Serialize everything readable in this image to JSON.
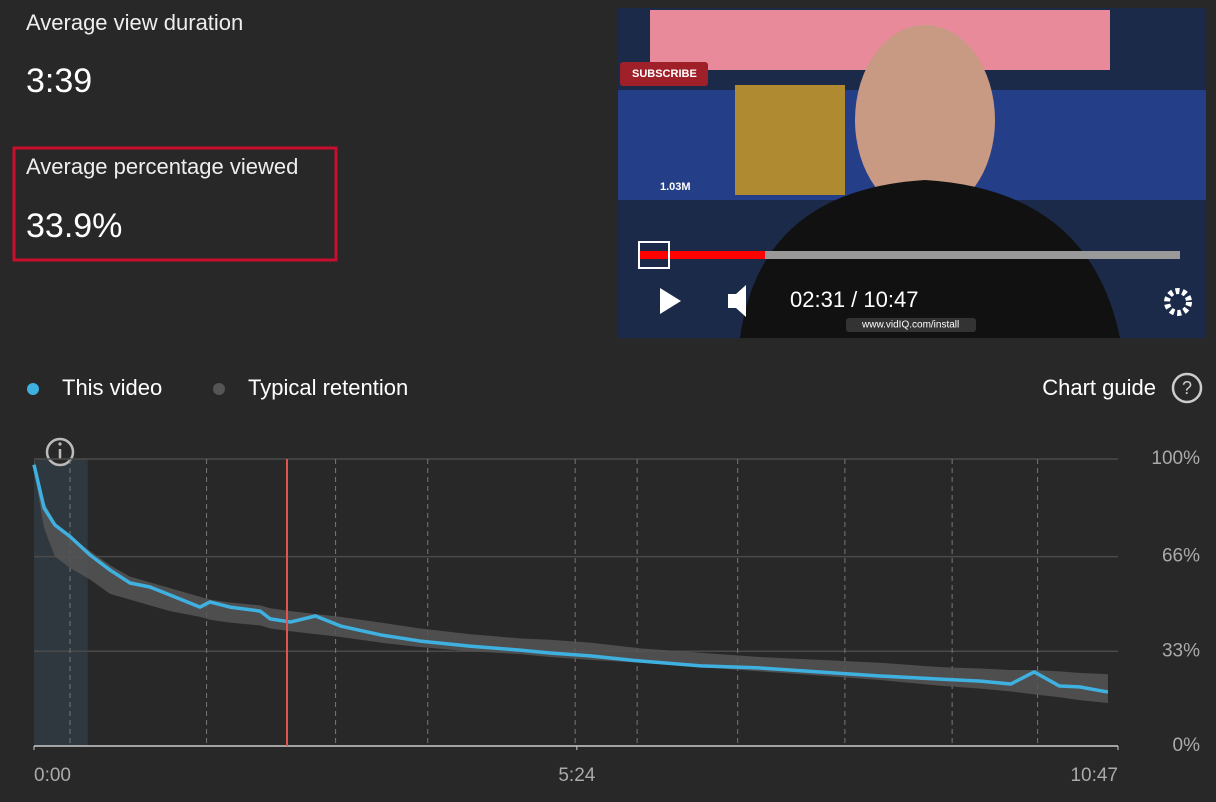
{
  "metrics": [
    {
      "label": "Average view duration",
      "value": "3:39"
    },
    {
      "label": "Average percentage viewed",
      "value": "33.9%"
    }
  ],
  "video": {
    "time": "02:31 / 10:47",
    "overlay_texts": [
      "SUBSCRIBE",
      "1.03M",
      "www.vidIQ.com/install"
    ]
  },
  "chart_guide": "Chart guide",
  "chart_data": {
    "type": "line",
    "x": [
      0,
      6,
      12.5,
      21.5,
      33.4,
      45.4,
      57.3,
      69.2,
      81.2,
      99.1,
      105,
      117,
      135,
      141,
      153,
      168,
      183,
      207,
      230,
      260,
      290,
      308,
      332,
      362,
      398,
      433,
      469,
      505,
      541,
      565,
      583,
      597,
      612,
      624,
      641
    ],
    "series": [
      {
        "name": "This video",
        "color": "#3fb1e0",
        "values": [
          98,
          83,
          77,
          73,
          66.6,
          61.3,
          56.8,
          55.4,
          52.6,
          48.4,
          50.2,
          48.4,
          47,
          44.3,
          43.2,
          45.3,
          41.8,
          38.7,
          36.6,
          34.8,
          33.4,
          32.4,
          31.4,
          29.6,
          27.9,
          27.2,
          25.8,
          24.4,
          23.3,
          22.6,
          21.6,
          25.8,
          20.9,
          20.6,
          18.8
        ]
      },
      {
        "name": "Typical retention",
        "color": "#555555",
        "high": [
          100,
          85,
          78,
          73,
          68,
          63,
          59,
          57,
          55,
          52,
          51,
          50,
          49,
          48,
          47,
          46,
          45,
          43,
          41,
          39,
          37.5,
          37,
          36,
          34,
          32.5,
          31,
          30,
          29,
          27.5,
          27,
          26.5,
          26.5,
          26,
          25.5,
          25
        ],
        "low": [
          96,
          76,
          66,
          62,
          58,
          53,
          51,
          49,
          47,
          45,
          44,
          43,
          42,
          41,
          40,
          39,
          38,
          36,
          34.5,
          33,
          32,
          31,
          30,
          29,
          27.5,
          26,
          24.5,
          23,
          21,
          20,
          19,
          18,
          17,
          16,
          15
        ]
      }
    ],
    "xlim": [
      0,
      647
    ],
    "xticks": [
      {
        "value": 0,
        "label": "0:00"
      },
      {
        "value": 324,
        "label": "5:24"
      },
      {
        "value": 647,
        "label": "10:47"
      }
    ],
    "ylim": [
      0,
      100
    ],
    "yticks": [
      {
        "value": 0,
        "label": "0%"
      },
      {
        "value": 33,
        "label": "33%"
      },
      {
        "value": 66,
        "label": "66%"
      },
      {
        "value": 100,
        "label": "100%"
      }
    ],
    "grid": true,
    "playhead": 151,
    "highlight_xlim": [
      0,
      32
    ],
    "chapters": [
      21.5,
      103,
      180,
      235,
      323,
      360,
      420,
      484,
      548,
      599
    ]
  }
}
